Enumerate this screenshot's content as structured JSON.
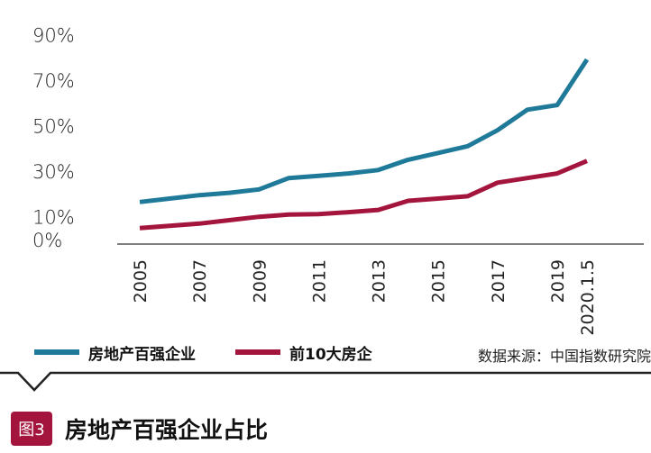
{
  "chart_data": {
    "type": "line",
    "title": "房地产百强企业占比",
    "xlabel": "",
    "ylabel": "",
    "ylim": [
      0,
      90
    ],
    "yticks": [
      {
        "value": 0,
        "label": "0%"
      },
      {
        "value": 10,
        "label": "10%"
      },
      {
        "value": 30,
        "label": "30%"
      },
      {
        "value": 50,
        "label": "50%"
      },
      {
        "value": 70,
        "label": "70%"
      },
      {
        "value": 90,
        "label": "90%"
      }
    ],
    "x": [
      "2005",
      "2006",
      "2007",
      "2008",
      "2009",
      "2010",
      "2011",
      "2012",
      "2013",
      "2014",
      "2015",
      "2016",
      "2017",
      "2018",
      "2019",
      "2020.1.5"
    ],
    "xticks": [
      "2005",
      "2007",
      "2009",
      "2011",
      "2013",
      "2015",
      "2017",
      "2019",
      "2020.1.5"
    ],
    "series": [
      {
        "name": "房地产百强企业",
        "color": "#1f7a99",
        "values": [
          16.5,
          18,
          19.5,
          20.5,
          22,
          27,
          28,
          29,
          30.5,
          35,
          38,
          41,
          48,
          57,
          59,
          79
        ]
      },
      {
        "name": "前10大房企",
        "color": "#a4153d",
        "values": [
          5,
          6,
          7,
          8.5,
          10,
          11,
          11.2,
          12,
          13,
          17,
          18,
          19,
          25,
          27,
          29,
          34.5
        ]
      }
    ]
  },
  "legend": {
    "items": [
      {
        "label": "房地产百强企业",
        "color": "#1f7a99"
      },
      {
        "label": "前10大房企",
        "color": "#a4153d"
      }
    ]
  },
  "source": "数据来源：中国指数研究院",
  "caption": {
    "badge": "图3",
    "title": "房地产百强企业占比"
  }
}
